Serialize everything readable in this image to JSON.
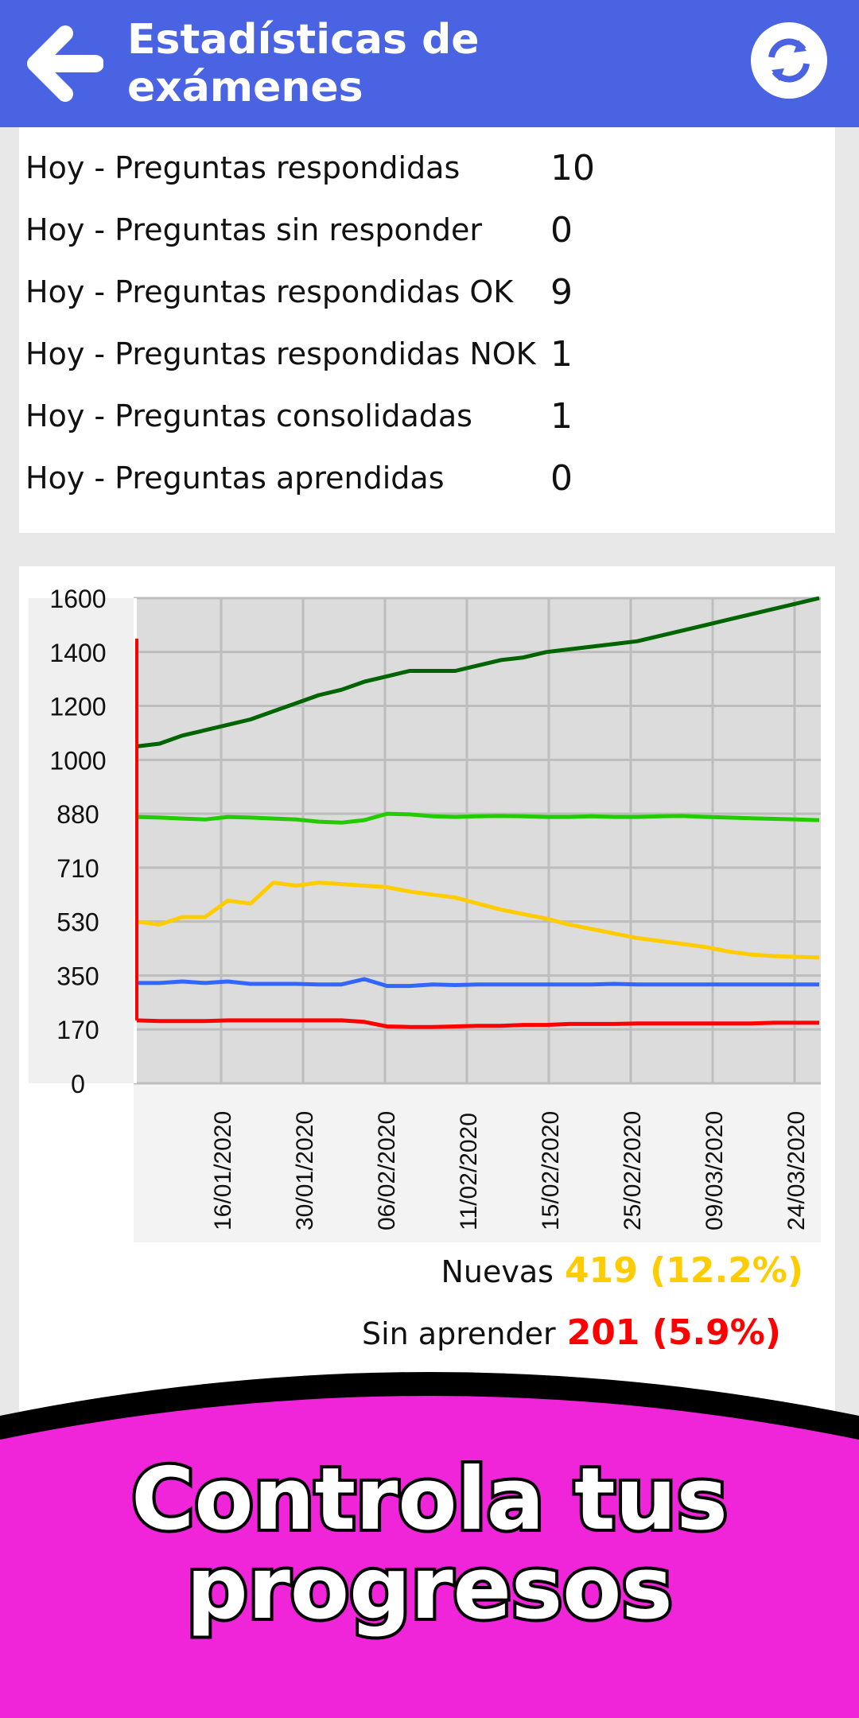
{
  "header": {
    "title": "Estadísticas de exámenes",
    "back_icon": "arrow-left-icon",
    "refresh_icon": "refresh-icon",
    "accent": "#4a63e3"
  },
  "stats": [
    {
      "label": "Hoy - Preguntas respondidas",
      "value": "10"
    },
    {
      "label": "Hoy - Preguntas sin responder",
      "value": "0"
    },
    {
      "label": "Hoy - Preguntas respondidas OK",
      "value": "9"
    },
    {
      "label": "Hoy - Preguntas respondidas NOK",
      "value": "1"
    },
    {
      "label": "Hoy - Preguntas consolidadas",
      "value": "1"
    },
    {
      "label": "Hoy - Preguntas aprendidas",
      "value": "0"
    }
  ],
  "chart_data": {
    "type": "line",
    "title": "",
    "xlabel": "",
    "ylabel": "",
    "y_tick_labels": [
      "0",
      "170",
      "350",
      "530",
      "710",
      "880",
      "1000",
      "1200",
      "1400",
      "1600"
    ],
    "x_tick_labels": [
      "16/01/2020",
      "30/01/2020",
      "06/02/2020",
      "11/02/2020",
      "15/02/2020",
      "25/02/2020",
      "09/03/2020",
      "24/03/2020"
    ],
    "grid": true,
    "series": [
      {
        "color": "#006400",
        "values": [
          1050,
          1060,
          1090,
          1110,
          1130,
          1150,
          1180,
          1210,
          1240,
          1260,
          1290,
          1310,
          1330,
          1330,
          1330,
          1350,
          1370,
          1380,
          1400,
          1410,
          1420,
          1430,
          1440,
          1460,
          1480,
          1500,
          1520,
          1540,
          1560,
          1580,
          1600
        ]
      },
      {
        "color": "#22cc00",
        "values": [
          870,
          868,
          865,
          862,
          870,
          868,
          865,
          862,
          855,
          852,
          860,
          880,
          878,
          872,
          870,
          872,
          873,
          872,
          870,
          870,
          872,
          870,
          870,
          872,
          873,
          870,
          868,
          866,
          864,
          862,
          860
        ]
      },
      {
        "color": "#ffcc00",
        "values": [
          530,
          520,
          545,
          545,
          600,
          590,
          660,
          650,
          660,
          655,
          650,
          645,
          630,
          620,
          610,
          590,
          570,
          555,
          540,
          520,
          505,
          490,
          475,
          465,
          455,
          445,
          430,
          420,
          415,
          412,
          410
        ]
      },
      {
        "color": "#3366ff",
        "values": [
          325,
          325,
          330,
          325,
          330,
          322,
          322,
          322,
          320,
          320,
          338,
          315,
          315,
          320,
          318,
          320,
          320,
          320,
          320,
          320,
          320,
          322,
          320,
          320,
          320,
          320,
          320,
          320,
          320,
          320,
          320
        ]
      },
      {
        "color": "#ff0000",
        "values": [
          200,
          198,
          198,
          198,
          200,
          200,
          200,
          200,
          200,
          200,
          195,
          180,
          178,
          178,
          180,
          182,
          182,
          185,
          185,
          188,
          188,
          188,
          190,
          190,
          190,
          190,
          190,
          190,
          192,
          192,
          192
        ]
      }
    ]
  },
  "legend": [
    {
      "label": "Nuevas",
      "value": "419 (12.2%)",
      "color": "#ffcc00"
    },
    {
      "label": "Sin aprender",
      "value": "201 (5.9%)",
      "color": "#ff0000"
    }
  ],
  "promo": {
    "line1": "Controla tus",
    "line2": "progresos",
    "color": "#f024d8"
  }
}
